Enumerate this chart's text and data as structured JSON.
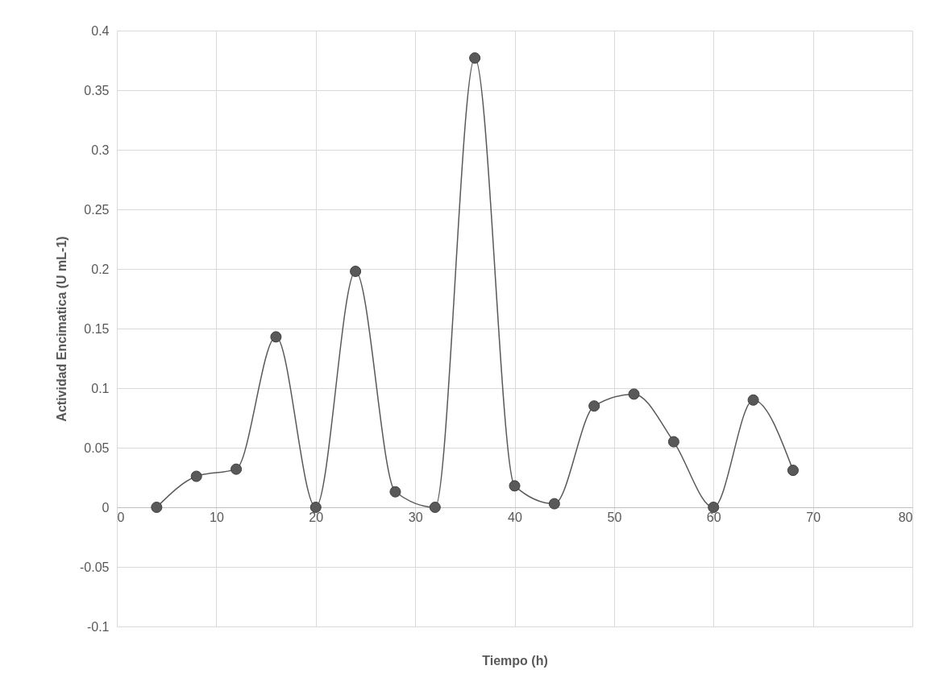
{
  "chart_data": {
    "type": "line",
    "xlabel": "Tiempo (h)",
    "ylabel": "Actividad Encimatica (U mL-1)",
    "x": [
      4,
      8,
      12,
      16,
      20,
      24,
      28,
      32,
      36,
      40,
      44,
      48,
      52,
      56,
      60,
      64,
      68
    ],
    "series": [
      {
        "color": "#595959",
        "values": [
          0,
          0.026,
          0.032,
          0.143,
          0,
          0.198,
          0.013,
          0,
          0.377,
          0.018,
          0.003,
          0.085,
          0.095,
          0.055,
          0,
          0.09,
          0.031
        ]
      }
    ],
    "xlim": [
      0,
      80
    ],
    "xticks": [
      0,
      10,
      20,
      30,
      40,
      50,
      60,
      70,
      80
    ],
    "ylim": [
      -0.1,
      0.4
    ],
    "yticks": [
      -0.1,
      -0.05,
      0,
      0.05,
      0.1,
      0.15,
      0.2,
      0.25,
      0.3,
      0.35,
      0.4
    ],
    "grid": true,
    "marker": "circle",
    "line_style": "solid"
  }
}
